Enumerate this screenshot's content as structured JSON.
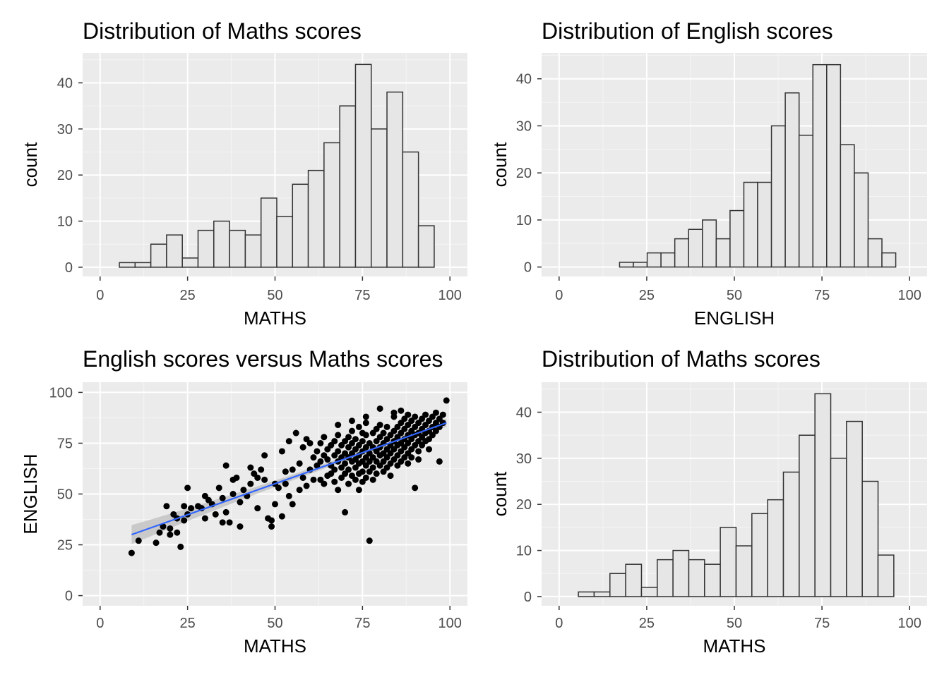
{
  "chart_data": [
    {
      "type": "bar",
      "title": "Distribution of Maths scores",
      "xlabel": "MATHS",
      "ylabel": "count",
      "xlim": [
        -5,
        105
      ],
      "ylim": [
        -2,
        46.5
      ],
      "x_ticks": [
        0,
        25,
        50,
        75,
        100
      ],
      "y_ticks": [
        0,
        10,
        20,
        30,
        40
      ],
      "grid": true,
      "bin_width": 4.5,
      "bin_start": 5.5,
      "values": [
        1,
        1,
        5,
        7,
        2,
        8,
        10,
        8,
        7,
        15,
        11,
        18,
        21,
        27,
        35,
        44,
        30,
        38,
        25,
        9
      ]
    },
    {
      "type": "bar",
      "title": "Distribution of English scores",
      "xlabel": "ENGLISH",
      "ylabel": "count",
      "xlim": [
        -5,
        105
      ],
      "ylim": [
        -2,
        45.5
      ],
      "x_ticks": [
        0,
        25,
        50,
        75,
        100
      ],
      "y_ticks": [
        0,
        10,
        20,
        30,
        40
      ],
      "grid": true,
      "bin_width": 3.94,
      "bin_start": 17.25,
      "values": [
        1,
        1,
        3,
        3,
        6,
        8,
        10,
        6,
        12,
        18,
        18,
        30,
        37,
        28,
        43,
        43,
        26,
        20,
        6,
        3
      ]
    },
    {
      "type": "scatter",
      "title": "English scores versus Maths scores",
      "xlabel": "MATHS",
      "ylabel": "ENGLISH",
      "xlim": [
        -5,
        105
      ],
      "ylim": [
        -5,
        105
      ],
      "x_ticks": [
        0,
        25,
        50,
        75,
        100
      ],
      "y_ticks": [
        0,
        25,
        50,
        75,
        100
      ],
      "grid": true,
      "colors": {
        "points": "#000000",
        "trend": "#3366ff",
        "band": "#bdbdbd"
      },
      "trend_line": {
        "x": [
          9,
          99
        ],
        "y": [
          30,
          85
        ]
      },
      "points": [
        [
          9,
          21
        ],
        [
          11,
          27
        ],
        [
          16,
          26
        ],
        [
          17,
          31
        ],
        [
          18,
          34
        ],
        [
          19,
          44
        ],
        [
          20,
          33
        ],
        [
          21,
          40
        ],
        [
          22,
          31
        ],
        [
          23,
          24
        ],
        [
          22,
          38
        ],
        [
          24,
          44
        ],
        [
          25,
          53
        ],
        [
          26,
          43
        ],
        [
          25,
          40
        ],
        [
          29,
          43
        ],
        [
          30,
          38
        ],
        [
          30,
          49
        ],
        [
          31,
          47
        ],
        [
          32,
          45
        ],
        [
          33,
          40
        ],
        [
          34,
          53
        ],
        [
          35,
          36
        ],
        [
          36,
          64
        ],
        [
          35,
          48
        ],
        [
          36,
          41
        ],
        [
          37,
          36
        ],
        [
          38,
          57
        ],
        [
          38,
          50
        ],
        [
          40,
          46
        ],
        [
          40,
          34
        ],
        [
          41,
          52
        ],
        [
          42,
          49
        ],
        [
          43,
          55
        ],
        [
          44,
          60
        ],
        [
          45,
          58
        ],
        [
          45,
          43
        ],
        [
          46,
          62
        ],
        [
          47,
          57
        ],
        [
          48,
          38
        ],
        [
          49,
          37
        ],
        [
          49,
          34
        ],
        [
          50,
          45
        ],
        [
          50,
          55
        ],
        [
          51,
          53
        ],
        [
          52,
          39
        ],
        [
          53,
          61
        ],
        [
          53,
          55
        ],
        [
          54,
          76
        ],
        [
          54,
          49
        ],
        [
          55,
          45
        ],
        [
          55,
          62
        ],
        [
          56,
          80
        ],
        [
          57,
          65
        ],
        [
          57,
          52
        ],
        [
          58,
          73
        ],
        [
          58,
          58
        ],
        [
          59,
          54
        ],
        [
          60,
          75
        ],
        [
          60,
          62
        ],
        [
          61,
          68
        ],
        [
          61,
          57
        ],
        [
          62,
          64
        ],
        [
          62,
          71
        ],
        [
          63,
          57
        ],
        [
          63,
          66
        ],
        [
          64,
          69
        ],
        [
          64,
          78
        ],
        [
          64,
          55
        ],
        [
          65,
          59
        ],
        [
          65,
          72
        ],
        [
          65,
          67
        ],
        [
          66,
          74
        ],
        [
          66,
          64
        ],
        [
          66,
          60
        ],
        [
          67,
          69
        ],
        [
          67,
          76
        ],
        [
          67,
          62
        ],
        [
          67,
          56
        ],
        [
          68,
          71
        ],
        [
          68,
          79
        ],
        [
          68,
          66
        ],
        [
          68,
          52
        ],
        [
          69,
          68
        ],
        [
          69,
          74
        ],
        [
          69,
          63
        ],
        [
          69,
          58
        ],
        [
          70,
          76
        ],
        [
          70,
          70
        ],
        [
          70,
          65
        ],
        [
          70,
          60
        ],
        [
          70,
          41
        ],
        [
          71,
          73
        ],
        [
          71,
          68
        ],
        [
          71,
          78
        ],
        [
          71,
          62
        ],
        [
          71,
          55
        ],
        [
          72,
          70
        ],
        [
          72,
          75
        ],
        [
          72,
          66
        ],
        [
          72,
          81
        ],
        [
          72,
          59
        ],
        [
          73,
          72
        ],
        [
          73,
          67
        ],
        [
          73,
          77
        ],
        [
          73,
          63
        ],
        [
          73,
          57
        ],
        [
          74,
          74
        ],
        [
          74,
          69
        ],
        [
          74,
          83
        ],
        [
          74,
          65
        ],
        [
          74,
          60
        ],
        [
          74,
          52
        ],
        [
          75,
          71
        ],
        [
          75,
          76
        ],
        [
          75,
          80
        ],
        [
          75,
          66
        ],
        [
          75,
          61
        ],
        [
          75,
          56
        ],
        [
          76,
          73
        ],
        [
          76,
          68
        ],
        [
          76,
          79
        ],
        [
          76,
          64
        ],
        [
          76,
          58
        ],
        [
          76,
          85
        ],
        [
          77,
          70
        ],
        [
          77,
          75
        ],
        [
          77,
          66
        ],
        [
          77,
          61
        ],
        [
          77,
          27
        ],
        [
          78,
          73
        ],
        [
          78,
          80
        ],
        [
          78,
          68
        ],
        [
          78,
          63
        ],
        [
          78,
          57
        ],
        [
          79,
          76
        ],
        [
          79,
          71
        ],
        [
          79,
          82
        ],
        [
          79,
          66
        ],
        [
          79,
          60
        ],
        [
          80,
          73
        ],
        [
          80,
          78
        ],
        [
          80,
          69
        ],
        [
          80,
          64
        ],
        [
          80,
          84
        ],
        [
          81,
          75
        ],
        [
          81,
          70
        ],
        [
          81,
          80
        ],
        [
          81,
          66
        ],
        [
          81,
          61
        ],
        [
          82,
          77
        ],
        [
          82,
          72
        ],
        [
          82,
          83
        ],
        [
          82,
          68
        ],
        [
          82,
          63
        ],
        [
          83,
          74
        ],
        [
          83,
          79
        ],
        [
          83,
          70
        ],
        [
          83,
          65
        ],
        [
          83,
          59
        ],
        [
          84,
          76
        ],
        [
          84,
          81
        ],
        [
          84,
          72
        ],
        [
          84,
          67
        ],
        [
          84,
          88
        ],
        [
          85,
          78
        ],
        [
          85,
          74
        ],
        [
          85,
          83
        ],
        [
          85,
          69
        ],
        [
          85,
          64
        ],
        [
          86,
          80
        ],
        [
          86,
          75
        ],
        [
          86,
          85
        ],
        [
          86,
          71
        ],
        [
          86,
          66
        ],
        [
          87,
          77
        ],
        [
          87,
          82
        ],
        [
          87,
          73
        ],
        [
          87,
          87
        ],
        [
          87,
          68
        ],
        [
          88,
          79
        ],
        [
          88,
          75
        ],
        [
          88,
          84
        ],
        [
          88,
          70
        ],
        [
          88,
          65
        ],
        [
          89,
          81
        ],
        [
          89,
          77
        ],
        [
          89,
          86
        ],
        [
          89,
          72
        ],
        [
          89,
          68
        ],
        [
          90,
          83
        ],
        [
          90,
          79
        ],
        [
          90,
          88
        ],
        [
          90,
          74
        ],
        [
          90,
          53
        ],
        [
          91,
          80
        ],
        [
          91,
          85
        ],
        [
          91,
          76
        ],
        [
          91,
          71
        ],
        [
          91,
          67
        ],
        [
          92,
          82
        ],
        [
          92,
          78
        ],
        [
          92,
          87
        ],
        [
          92,
          74
        ],
        [
          93,
          84
        ],
        [
          93,
          80
        ],
        [
          93,
          89
        ],
        [
          93,
          76
        ],
        [
          94,
          81
        ],
        [
          94,
          86
        ],
        [
          94,
          77
        ],
        [
          94,
          72
        ],
        [
          95,
          83
        ],
        [
          95,
          88
        ],
        [
          95,
          79
        ],
        [
          96,
          85
        ],
        [
          96,
          81
        ],
        [
          96,
          90
        ],
        [
          97,
          87
        ],
        [
          97,
          83
        ],
        [
          97,
          66
        ],
        [
          98,
          89
        ],
        [
          98,
          85
        ],
        [
          99,
          96
        ],
        [
          86,
          91
        ],
        [
          88,
          89
        ],
        [
          84,
          90
        ],
        [
          80,
          92
        ],
        [
          76,
          88
        ],
        [
          72,
          86
        ],
        [
          68,
          84
        ],
        [
          63,
          75
        ],
        [
          59,
          77
        ],
        [
          52,
          71
        ],
        [
          47,
          69
        ],
        [
          43,
          63
        ],
        [
          39,
          58
        ],
        [
          28,
          44
        ],
        [
          24,
          37
        ],
        [
          20,
          30
        ]
      ]
    },
    {
      "type": "bar",
      "title": "Distribution of Maths scores",
      "xlabel": "MATHS",
      "ylabel": "count",
      "xlim": [
        -5,
        105
      ],
      "ylim": [
        -2,
        46.5
      ],
      "x_ticks": [
        0,
        25,
        50,
        75,
        100
      ],
      "y_ticks": [
        0,
        10,
        20,
        30,
        40
      ],
      "grid": true,
      "bin_width": 4.5,
      "bin_start": 5.5,
      "values": [
        1,
        1,
        5,
        7,
        2,
        8,
        10,
        8,
        7,
        15,
        11,
        18,
        21,
        27,
        35,
        44,
        30,
        38,
        25,
        9
      ]
    }
  ]
}
